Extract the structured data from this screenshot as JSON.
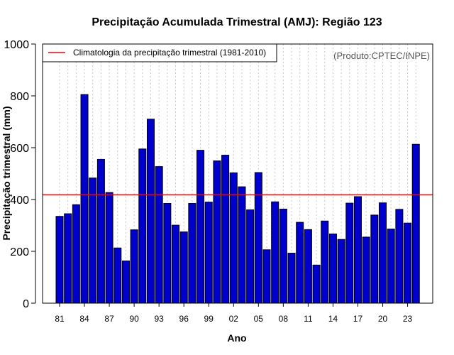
{
  "chart_data": {
    "type": "bar",
    "title": "Precipitação Acumulada Trimestral (AMJ): Região 123",
    "xlabel": "Ano",
    "ylabel": "Precipitação trimestral (mm)",
    "ylim": [
      0,
      1000
    ],
    "yticks": [
      "0",
      "200",
      "400",
      "600",
      "800",
      "1000"
    ],
    "xtick_labels": [
      "81",
      "84",
      "87",
      "90",
      "93",
      "96",
      "99",
      "02",
      "05",
      "08",
      "11",
      "14",
      "17",
      "20",
      "23"
    ],
    "categories": [
      1981,
      1982,
      1983,
      1984,
      1985,
      1986,
      1987,
      1988,
      1989,
      1990,
      1991,
      1992,
      1993,
      1994,
      1995,
      1996,
      1997,
      1998,
      1999,
      2000,
      2001,
      2002,
      2003,
      2004,
      2005,
      2006,
      2007,
      2008,
      2009,
      2010,
      2011,
      2012,
      2013,
      2014,
      2015,
      2016,
      2017,
      2018,
      2019,
      2020,
      2021,
      2022,
      2023,
      2024
    ],
    "values": [
      335,
      345,
      380,
      805,
      483,
      555,
      427,
      213,
      163,
      283,
      595,
      710,
      527,
      385,
      301,
      275,
      385,
      590,
      390,
      549,
      571,
      503,
      449,
      360,
      504,
      206,
      391,
      363,
      193,
      312,
      284,
      147,
      317,
      267,
      246,
      386,
      411,
      255,
      340,
      387,
      286,
      362,
      309,
      613
    ],
    "climatology": {
      "value": 418,
      "label": "Climatologia da precipitação trimestral (1981-2010)",
      "color": "#ff0000"
    },
    "source_note": "(Produto:CPTEC/INPE)",
    "bar_color": "#0000cc",
    "grid": "vertical-dotted",
    "legend_position": "top-left"
  }
}
